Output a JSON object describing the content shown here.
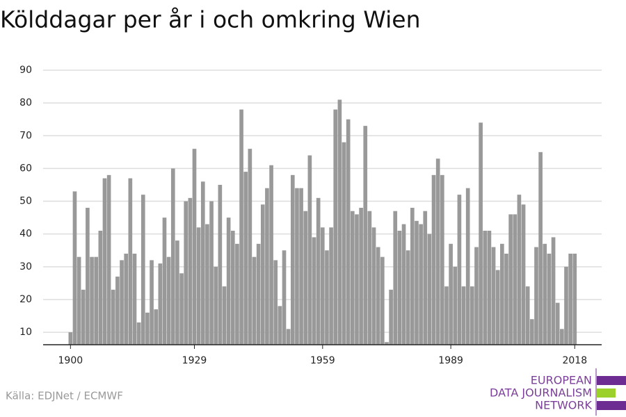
{
  "chart_data": {
    "type": "bar",
    "title": "Kölddagar per år i och omkring Wien",
    "x": [
      1900,
      1901,
      1902,
      1903,
      1904,
      1905,
      1906,
      1907,
      1908,
      1909,
      1910,
      1911,
      1912,
      1913,
      1914,
      1915,
      1916,
      1917,
      1918,
      1919,
      1920,
      1921,
      1922,
      1923,
      1924,
      1925,
      1926,
      1927,
      1928,
      1929,
      1930,
      1931,
      1932,
      1933,
      1934,
      1935,
      1936,
      1937,
      1938,
      1939,
      1940,
      1941,
      1942,
      1943,
      1944,
      1945,
      1946,
      1947,
      1948,
      1949,
      1950,
      1951,
      1952,
      1953,
      1954,
      1955,
      1956,
      1957,
      1958,
      1959,
      1960,
      1961,
      1962,
      1963,
      1964,
      1965,
      1966,
      1967,
      1968,
      1969,
      1970,
      1971,
      1972,
      1973,
      1974,
      1975,
      1976,
      1977,
      1978,
      1979,
      1980,
      1981,
      1982,
      1983,
      1984,
      1985,
      1986,
      1987,
      1988,
      1989,
      1990,
      1991,
      1992,
      1993,
      1994,
      1995,
      1996,
      1997,
      1998,
      1999,
      2000,
      2001,
      2002,
      2003,
      2004,
      2005,
      2006,
      2007,
      2008,
      2009,
      2010,
      2011,
      2012,
      2013,
      2014,
      2015,
      2016,
      2017,
      2018
    ],
    "values": [
      10,
      53,
      33,
      23,
      48,
      33,
      33,
      41,
      57,
      58,
      23,
      27,
      32,
      34,
      57,
      34,
      13,
      52,
      16,
      32,
      17,
      31,
      45,
      33,
      60,
      38,
      28,
      50,
      51,
      66,
      42,
      56,
      43,
      50,
      30,
      55,
      24,
      45,
      41,
      37,
      78,
      59,
      66,
      33,
      37,
      49,
      54,
      61,
      32,
      18,
      35,
      11,
      58,
      54,
      54,
      47,
      64,
      39,
      51,
      42,
      35,
      42,
      78,
      81,
      68,
      75,
      47,
      46,
      48,
      73,
      47,
      42,
      36,
      33,
      7,
      23,
      47,
      41,
      43,
      35,
      48,
      44,
      43,
      47,
      40,
      58,
      63,
      58,
      24,
      37,
      30,
      52,
      24,
      54,
      24,
      36,
      74,
      41,
      41,
      36,
      29,
      37,
      34,
      46,
      46,
      52,
      49,
      24,
      14,
      36,
      65,
      37,
      34,
      39,
      19,
      11,
      30,
      34,
      34
    ],
    "color": "#999999",
    "xlim": [
      1893.6,
      2024.3
    ],
    "xticks": [
      1900,
      1929,
      1959,
      1989,
      2018
    ],
    "ylim": [
      6.2,
      90
    ],
    "yticks": [
      10,
      20,
      30,
      40,
      50,
      60,
      70,
      80,
      90
    ],
    "grid": true,
    "source": "Källa: EDJNet / ECMWF",
    "logo": [
      "EUROPEAN",
      "DATA JOURNALISM",
      "NETWORK"
    ]
  }
}
